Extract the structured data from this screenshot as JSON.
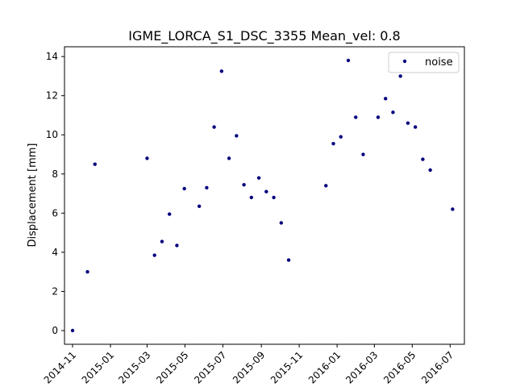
{
  "chart_data": {
    "type": "scatter",
    "title": "IGME_LORCA_S1_DSC_3355     Mean_vel: 0.8",
    "xlabel": "",
    "ylabel": "Displacement [mm]",
    "x_axis_type": "date",
    "xlim": [
      "2014-10-19",
      "2016-07-24"
    ],
    "ylim": [
      -0.7,
      14.5
    ],
    "xticks": [
      {
        "date": "2014-11-01",
        "label": "2014-11"
      },
      {
        "date": "2015-01-01",
        "label": "2015-01"
      },
      {
        "date": "2015-03-01",
        "label": "2015-03"
      },
      {
        "date": "2015-05-01",
        "label": "2015-05"
      },
      {
        "date": "2015-07-01",
        "label": "2015-07"
      },
      {
        "date": "2015-09-01",
        "label": "2015-09"
      },
      {
        "date": "2015-11-01",
        "label": "2015-11"
      },
      {
        "date": "2016-01-01",
        "label": "2016-01"
      },
      {
        "date": "2016-03-01",
        "label": "2016-03"
      },
      {
        "date": "2016-05-01",
        "label": "2016-05"
      },
      {
        "date": "2016-07-01",
        "label": "2016-07"
      }
    ],
    "yticks": [
      0,
      2,
      4,
      6,
      8,
      10,
      12,
      14
    ],
    "grid": false,
    "legend_position": "top-right",
    "series": [
      {
        "name": "noise",
        "color": "#00007f",
        "points": [
          {
            "x": "2014-11-01",
            "y": 0.0
          },
          {
            "x": "2014-11-25",
            "y": 3.0
          },
          {
            "x": "2014-12-07",
            "y": 8.5
          },
          {
            "x": "2015-03-01",
            "y": 8.8
          },
          {
            "x": "2015-03-13",
            "y": 3.85
          },
          {
            "x": "2015-03-25",
            "y": 4.55
          },
          {
            "x": "2015-04-06",
            "y": 5.95
          },
          {
            "x": "2015-04-18",
            "y": 4.35
          },
          {
            "x": "2015-04-30",
            "y": 7.25
          },
          {
            "x": "2015-05-24",
            "y": 6.35
          },
          {
            "x": "2015-06-05",
            "y": 7.3
          },
          {
            "x": "2015-06-17",
            "y": 10.4
          },
          {
            "x": "2015-06-29",
            "y": 13.25
          },
          {
            "x": "2015-07-11",
            "y": 8.8
          },
          {
            "x": "2015-07-23",
            "y": 9.95
          },
          {
            "x": "2015-08-04",
            "y": 7.45
          },
          {
            "x": "2015-08-16",
            "y": 6.8
          },
          {
            "x": "2015-08-28",
            "y": 7.8
          },
          {
            "x": "2015-09-09",
            "y": 7.1
          },
          {
            "x": "2015-09-21",
            "y": 6.8
          },
          {
            "x": "2015-10-03",
            "y": 5.5
          },
          {
            "x": "2015-10-15",
            "y": 3.6
          },
          {
            "x": "2015-12-14",
            "y": 7.4
          },
          {
            "x": "2015-12-26",
            "y": 9.55
          },
          {
            "x": "2016-01-07",
            "y": 9.9
          },
          {
            "x": "2016-01-19",
            "y": 13.8
          },
          {
            "x": "2016-01-31",
            "y": 10.9
          },
          {
            "x": "2016-02-12",
            "y": 9.0
          },
          {
            "x": "2016-03-07",
            "y": 10.9
          },
          {
            "x": "2016-03-19",
            "y": 11.85
          },
          {
            "x": "2016-03-31",
            "y": 11.15
          },
          {
            "x": "2016-04-12",
            "y": 13.0
          },
          {
            "x": "2016-04-24",
            "y": 10.6
          },
          {
            "x": "2016-05-06",
            "y": 10.4
          },
          {
            "x": "2016-05-18",
            "y": 8.75
          },
          {
            "x": "2016-05-30",
            "y": 8.2
          },
          {
            "x": "2016-07-05",
            "y": 6.2
          }
        ]
      }
    ]
  }
}
